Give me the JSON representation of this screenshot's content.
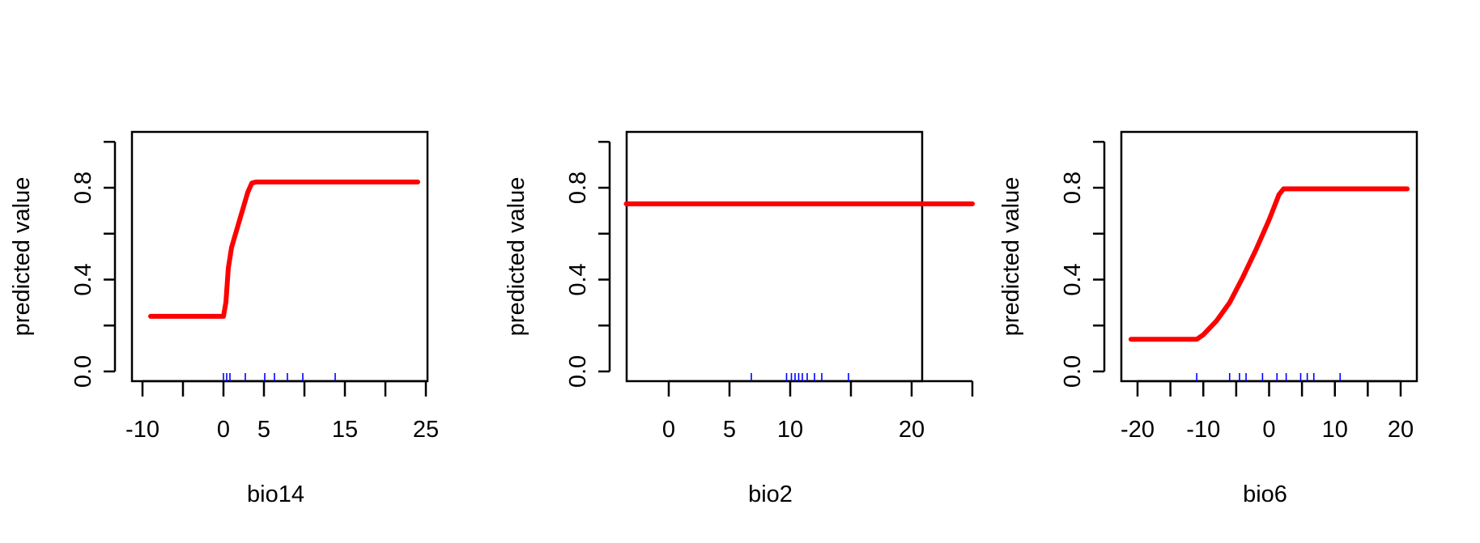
{
  "chart_data": [
    {
      "type": "line",
      "xlabel": "bio14",
      "ylabel": "predicted value",
      "xlim": [
        -10,
        25
      ],
      "ylim": [
        0,
        1
      ],
      "xticks": [
        "-10",
        "0",
        "5",
        "15",
        "25"
      ],
      "xtick_values": [
        -10,
        0,
        5,
        15,
        25
      ],
      "xminor_ticks": [
        -5,
        10,
        20
      ],
      "yticks": [
        "0.0",
        "0.4",
        "0.8"
      ],
      "ytick_values": [
        0,
        0.4,
        0.8
      ],
      "yminor_ticks": [
        0.2,
        0.6,
        1.0
      ],
      "line_color": "#ff0000",
      "x": [
        -9,
        0,
        0.3,
        0.6,
        1,
        2,
        3,
        3.5,
        4,
        24
      ],
      "y": [
        0.24,
        0.24,
        0.3,
        0.45,
        0.54,
        0.66,
        0.78,
        0.82,
        0.825,
        0.825
      ],
      "rug_color": "#0000ff",
      "rug": [
        0,
        0.4,
        0.8,
        2.7,
        5.1,
        6.3,
        7.9,
        9.8,
        13.8
      ]
    },
    {
      "type": "line",
      "xlabel": "bio2",
      "ylabel": "predicted value",
      "xlim": [
        -4,
        25
      ],
      "ylim": [
        0,
        1
      ],
      "xticks": [
        "0",
        "5",
        "10",
        "20"
      ],
      "xtick_values": [
        0,
        5,
        10,
        20
      ],
      "xminor_ticks": [
        15,
        25
      ],
      "yticks": [
        "0.0",
        "0.4",
        "0.8"
      ],
      "ytick_values": [
        0,
        0.4,
        0.8
      ],
      "yminor_ticks": [
        0.2,
        0.6,
        1.0
      ],
      "line_color": "#ff0000",
      "x": [
        -3.5,
        25
      ],
      "y": [
        0.73,
        0.73
      ],
      "rug_color": "#0000ff",
      "rug": [
        6.8,
        9.7,
        10.1,
        10.4,
        10.7,
        11.0,
        11.4,
        12.0,
        12.6,
        14.8
      ]
    },
    {
      "type": "line",
      "xlabel": "bio6",
      "ylabel": "predicted value",
      "xlim": [
        -22,
        22
      ],
      "ylim": [
        0,
        1
      ],
      "xticks": [
        "-20",
        "-10",
        "0",
        "10",
        "20"
      ],
      "xtick_values": [
        -20,
        -10,
        0,
        10,
        20
      ],
      "xminor_ticks": [
        -15,
        -5,
        5,
        15
      ],
      "yticks": [
        "0.0",
        "0.4",
        "0.8"
      ],
      "ytick_values": [
        0,
        0.4,
        0.8
      ],
      "yminor_ticks": [
        0.2,
        0.6,
        1.0
      ],
      "line_color": "#ff0000",
      "x": [
        -21,
        -11,
        -10,
        -8,
        -6,
        -4,
        -2,
        0,
        1.5,
        2.2,
        21
      ],
      "y": [
        0.14,
        0.14,
        0.16,
        0.22,
        0.3,
        0.41,
        0.53,
        0.66,
        0.77,
        0.795,
        0.795
      ],
      "rug_color": "#0000ff",
      "rug": [
        -11,
        -6,
        -4.5,
        -3.5,
        -1,
        1.2,
        2.6,
        4.8,
        5.8,
        6.8,
        10.8
      ]
    }
  ]
}
